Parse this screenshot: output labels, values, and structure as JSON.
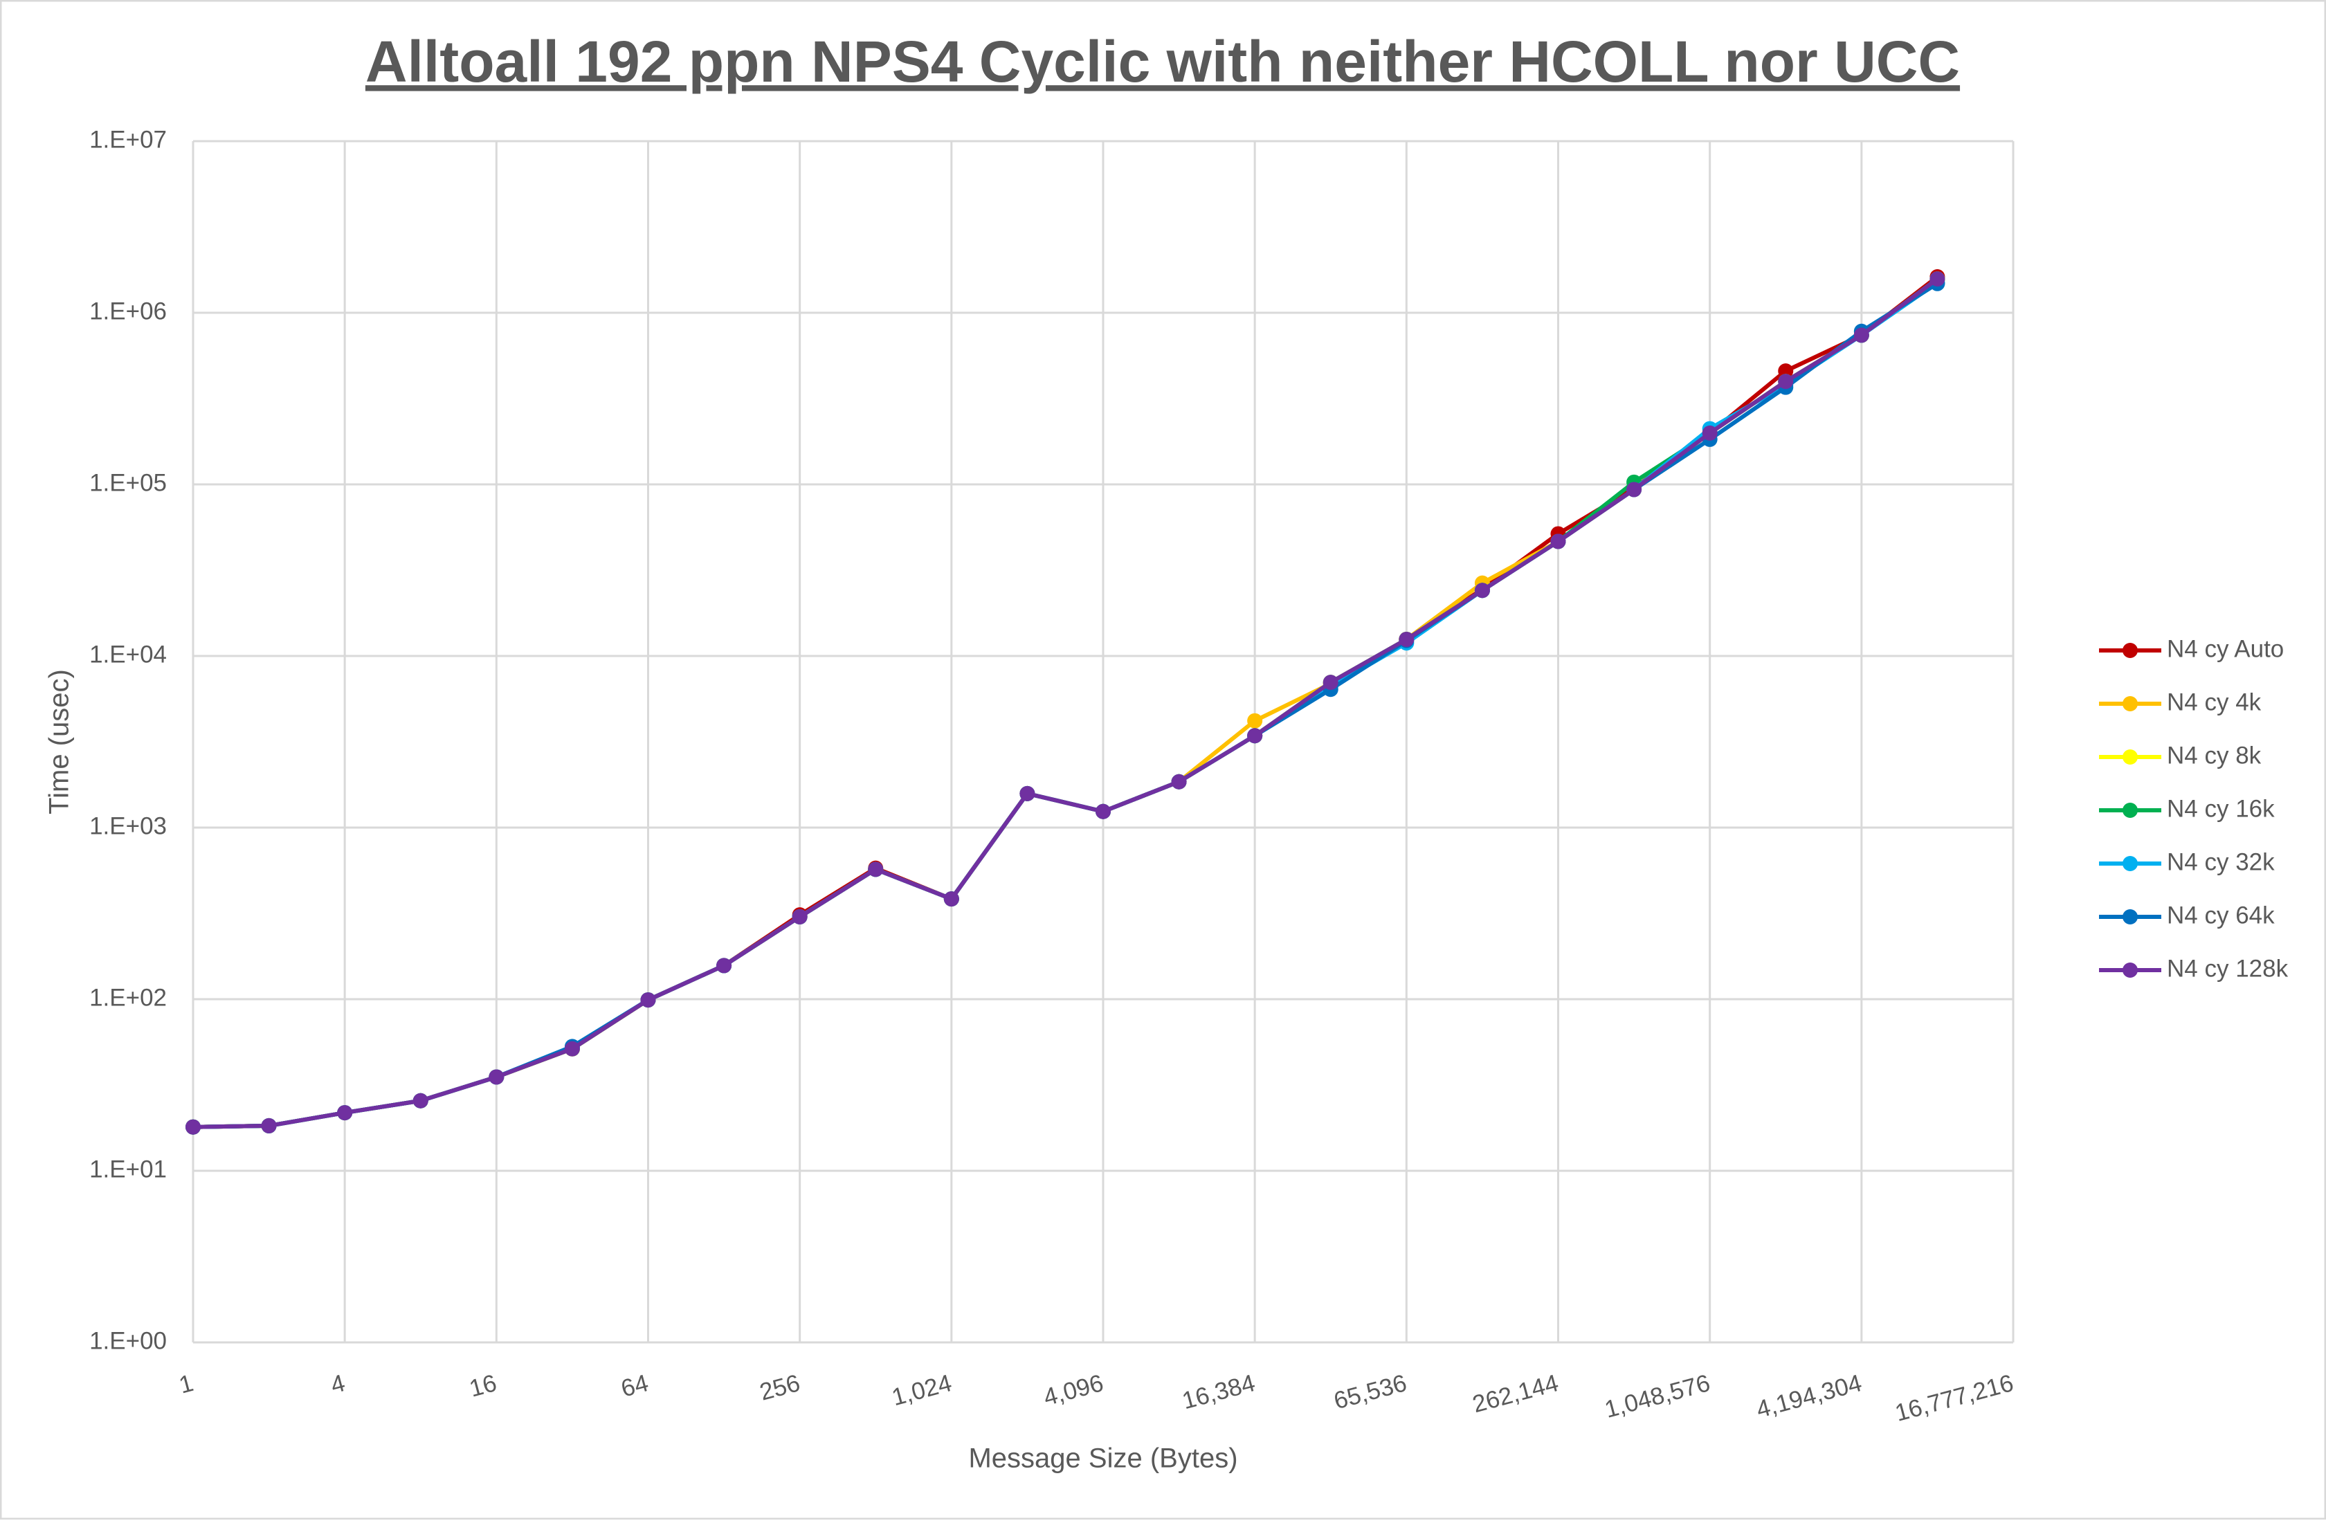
{
  "chart_data": {
    "type": "line",
    "title": "Alltoall 192 ppn NPS4 Cyclic with neither HCOLL nor UCC",
    "x_label": "Message Size (Bytes)",
    "y_label": "Time (usec)",
    "log_x": true,
    "log_y": true,
    "grid": true,
    "legend": "right",
    "x": [
      1,
      2,
      4,
      8,
      16,
      32,
      64,
      128,
      256,
      512,
      1024,
      2048,
      4096,
      8192,
      16384,
      32768,
      65536,
      131072,
      262144,
      524288,
      1048576,
      2097152,
      4194304,
      8388608
    ],
    "series": [
      {
        "name": "N4 cy Auto",
        "color": "#c00000",
        "values": [
          18,
          18.3,
          21.8,
          25.6,
          35.2,
          51.4,
          99,
          157,
          310,
          580,
          384,
          1578,
          1241,
          1850,
          3430,
          6900,
          12500,
          24500,
          51500,
          95000,
          199000,
          458000,
          740000,
          1620000
        ]
      },
      {
        "name": "N4 cy 4k",
        "color": "#ffc000",
        "values": [
          18,
          18.3,
          21.8,
          25.6,
          35.2,
          51.4,
          99,
          157,
          302,
          571,
          384,
          1578,
          1241,
          1850,
          4190,
          6900,
          12500,
          26600,
          46500,
          93300,
          199000,
          398000,
          740000,
          1575000
        ]
      },
      {
        "name": "N4 cy 8k",
        "color": "#ffff00",
        "values": [
          18,
          18.3,
          21.8,
          25.6,
          35.2,
          51.4,
          99,
          157,
          302,
          571,
          384,
          1578,
          1241,
          1850,
          3430,
          7020,
          12500,
          24100,
          46500,
          93300,
          199000,
          398000,
          740000,
          1575000
        ]
      },
      {
        "name": "N4 cy 16k",
        "color": "#00b050",
        "values": [
          18,
          18.3,
          21.8,
          25.6,
          35.2,
          51.4,
          99,
          157,
          302,
          571,
          384,
          1578,
          1241,
          1850,
          3430,
          7020,
          12500,
          24100,
          46500,
          103000,
          199000,
          398000,
          740000,
          1575000
        ]
      },
      {
        "name": "N4 cy 32k",
        "color": "#00b0f0",
        "values": [
          18,
          18.3,
          21.8,
          25.6,
          35.2,
          52,
          99,
          157,
          302,
          571,
          384,
          1578,
          1241,
          1850,
          3430,
          6600,
          11900,
          24100,
          46500,
          93300,
          211000,
          380000,
          740000,
          1500000
        ]
      },
      {
        "name": "N4 cy 64k",
        "color": "#0070c0",
        "values": [
          18,
          18.3,
          21.8,
          25.6,
          35.2,
          53,
          99,
          157,
          302,
          571,
          384,
          1578,
          1241,
          1850,
          3430,
          6390,
          12300,
          24100,
          46500,
          93300,
          183000,
          368000,
          780000,
          1480000
        ]
      },
      {
        "name": "N4 cy 128k",
        "color": "#7030a0",
        "values": [
          18,
          18.3,
          21.8,
          25.6,
          35.2,
          51.4,
          99,
          157,
          302,
          571,
          384,
          1578,
          1241,
          1850,
          3430,
          7020,
          12500,
          24100,
          46500,
          93300,
          199000,
          398000,
          740000,
          1575000
        ]
      }
    ],
    "xlim": [
      1,
      16777216
    ],
    "xticks": [
      1,
      4,
      16,
      64,
      256,
      {
        "value": 1024,
        "label": "1,024"
      },
      {
        "value": 4096,
        "label": "4,096"
      },
      {
        "value": 16384,
        "label": "16,384"
      },
      {
        "value": 65536,
        "label": "65,536"
      },
      {
        "value": 262144,
        "label": "262,144"
      },
      {
        "value": 1048576,
        "label": "1,048,576"
      },
      {
        "value": 4194304,
        "label": "4,194,304"
      },
      {
        "value": 16777216,
        "label": "16,777,216"
      }
    ],
    "ylim": [
      1,
      10000000
    ],
    "yticks": [
      {
        "value": 1,
        "label": "1.E+00"
      },
      {
        "value": 10,
        "label": "1.E+01"
      },
      {
        "value": 100,
        "label": "1.E+02"
      },
      {
        "value": 1000,
        "label": "1.E+03"
      },
      {
        "value": 10000,
        "label": "1.E+04"
      },
      {
        "value": 100000,
        "label": "1.E+05"
      },
      {
        "value": 1000000,
        "label": "1.E+06"
      },
      {
        "value": 10000000,
        "label": "1.E+07"
      }
    ]
  }
}
